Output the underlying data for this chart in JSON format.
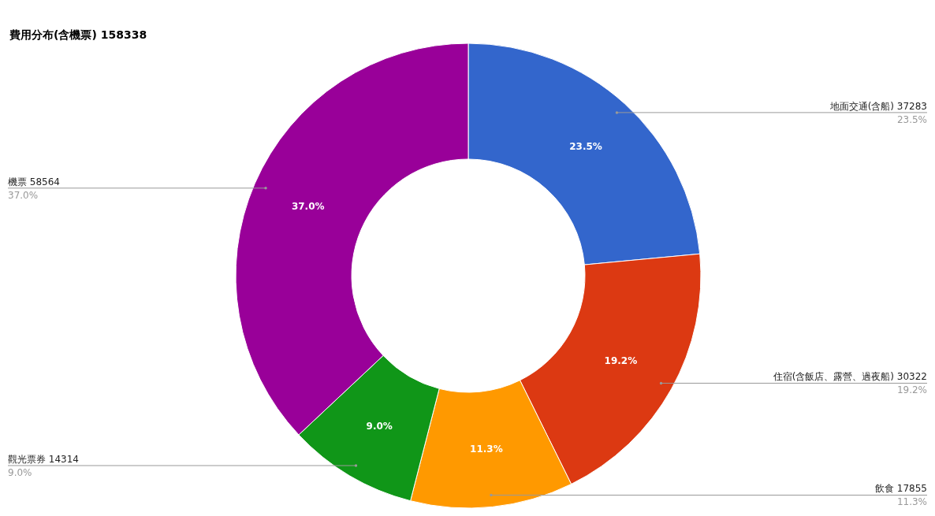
{
  "chart_data": {
    "type": "donut",
    "title": "費用分布(含機票) 158338",
    "categories": [
      "地面交通(含船) 37283",
      "住宿(含飯店、露營、過夜船) 30322",
      "飲食 17855",
      "觀光票券 14314",
      "機票 58564"
    ],
    "values": [
      23.5,
      19.2,
      11.3,
      9.0,
      37.0
    ],
    "colors": [
      "#3366cc",
      "#dc3912",
      "#ff9900",
      "#109618",
      "#990099"
    ],
    "value_labels": [
      "23.5%",
      "19.2%",
      "11.3%",
      "9.0%",
      "37.0%"
    ]
  }
}
